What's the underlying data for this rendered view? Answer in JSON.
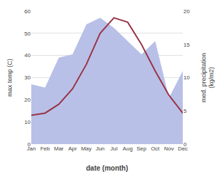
{
  "chart_data": {
    "type": "line",
    "categories": [
      "Jan",
      "Feb",
      "Mar",
      "Apr",
      "May",
      "Jun",
      "Jul",
      "Aug",
      "Sep",
      "Oct",
      "Nov",
      "Dec"
    ],
    "xlabel": "date (month)",
    "ylabel": "max temp (C)",
    "y2label": "med. precipitation\n(kg/m2)",
    "series": [
      {
        "type": "area",
        "axis": "y2",
        "color": "#b8c0e8",
        "values": [
          9.0,
          8.5,
          13.0,
          13.5,
          18.0,
          19.0,
          17.5,
          15.5,
          13.5,
          15.5,
          7.0,
          11.0
        ]
      },
      {
        "type": "line",
        "color": "#993344",
        "values": [
          13.0,
          14.0,
          18.0,
          25.0,
          36.0,
          50.0,
          57.0,
          55.0,
          45.0,
          33.0,
          22.0,
          14.0
        ]
      }
    ],
    "ylim": [
      0,
      60
    ],
    "yticks": [
      0,
      10,
      20,
      30,
      40,
      50,
      60
    ],
    "y2lim": [
      0,
      20
    ],
    "y2ticks": [
      0,
      5,
      10,
      15,
      20
    ],
    "grid": true
  }
}
